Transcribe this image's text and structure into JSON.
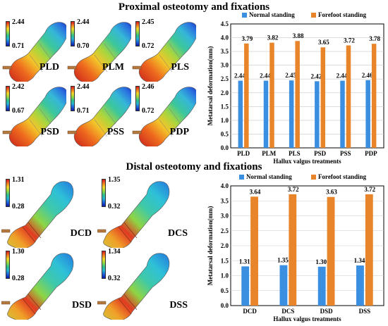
{
  "titles": {
    "proximal": "Proximal osteotomy and fixations",
    "distal": "Distal osteotomy and fixations"
  },
  "proximal_models": [
    {
      "label": "PLD",
      "max": "2.44",
      "min": "0.71"
    },
    {
      "label": "PLM",
      "max": "2.44",
      "min": "0.70"
    },
    {
      "label": "PLS",
      "max": "2.45",
      "min": "0.72"
    },
    {
      "label": "PSD",
      "max": "2.42",
      "min": "0.67"
    },
    {
      "label": "PSS",
      "max": "2.44",
      "min": "0.71"
    },
    {
      "label": "PDP",
      "max": "2.46",
      "min": "0.72"
    }
  ],
  "distal_models": [
    {
      "label": "DCD",
      "max": "1.31",
      "min": "0.28"
    },
    {
      "label": "DCS",
      "max": "1.35",
      "min": "0.32"
    },
    {
      "label": "DSD",
      "max": "1.30",
      "min": "0.28"
    },
    {
      "label": "DSS",
      "max": "1.34",
      "min": "0.32"
    }
  ],
  "colors": {
    "normal": "#3b8fe0",
    "forefoot": "#e8852a",
    "grid": "#c8c8c8",
    "colorbar": [
      "#d7191c",
      "#f07b22",
      "#f3d62a",
      "#9ad93f",
      "#2fc28a",
      "#26b5d6",
      "#1d5fd8",
      "#0b1aa8"
    ]
  },
  "chart_data": [
    {
      "type": "bar",
      "categories": [
        "PLD",
        "PLM",
        "PLS",
        "PSD",
        "PSS",
        "PDP"
      ],
      "series": [
        {
          "name": "Normal standing",
          "values": [
            2.44,
            2.44,
            2.45,
            2.42,
            2.44,
            2.46
          ]
        },
        {
          "name": "Forefoot standing",
          "values": [
            3.79,
            3.82,
            3.88,
            3.65,
            3.72,
            3.78
          ]
        }
      ],
      "data_labels": {
        "normal": [
          "2.44",
          "2.44",
          "2.45",
          "2.42",
          "2.44",
          "2.46"
        ],
        "forefoot": [
          "3.79",
          "3.82",
          "3.88",
          "3.65",
          "3.72",
          "3.78"
        ]
      },
      "xlabel": "Hallux valgus treatments",
      "ylabel": "Metatarsal deformation(mm)",
      "ylim": [
        0,
        4.5
      ],
      "yticks": [
        "0.0",
        "0.5",
        "1.0",
        "1.5",
        "2.0",
        "2.5",
        "3.0",
        "3.5",
        "4.0",
        "4.5"
      ],
      "grid": true,
      "legend": "top"
    },
    {
      "type": "bar",
      "categories": [
        "DCD",
        "DCS",
        "DSD",
        "DSS"
      ],
      "series": [
        {
          "name": "Normal standing",
          "values": [
            1.31,
            1.35,
            1.3,
            1.34
          ]
        },
        {
          "name": "Forefoot standing",
          "values": [
            3.64,
            3.72,
            3.63,
            3.72
          ]
        }
      ],
      "data_labels": {
        "normal": [
          "1.31",
          "1.35",
          "1.30",
          "1.34"
        ],
        "forefoot": [
          "3.64",
          "3.72",
          "3.63",
          "3.72"
        ]
      },
      "xlabel": "Hallux valgus treatments",
      "ylabel": "Metatarsal deformation(mm)",
      "ylim": [
        0,
        4
      ],
      "yticks": [
        "0.0",
        "0.5",
        "1.0",
        "1.5",
        "2.0",
        "2.5",
        "3.0",
        "3.5",
        "4.0"
      ],
      "grid": true,
      "legend": "top"
    }
  ]
}
